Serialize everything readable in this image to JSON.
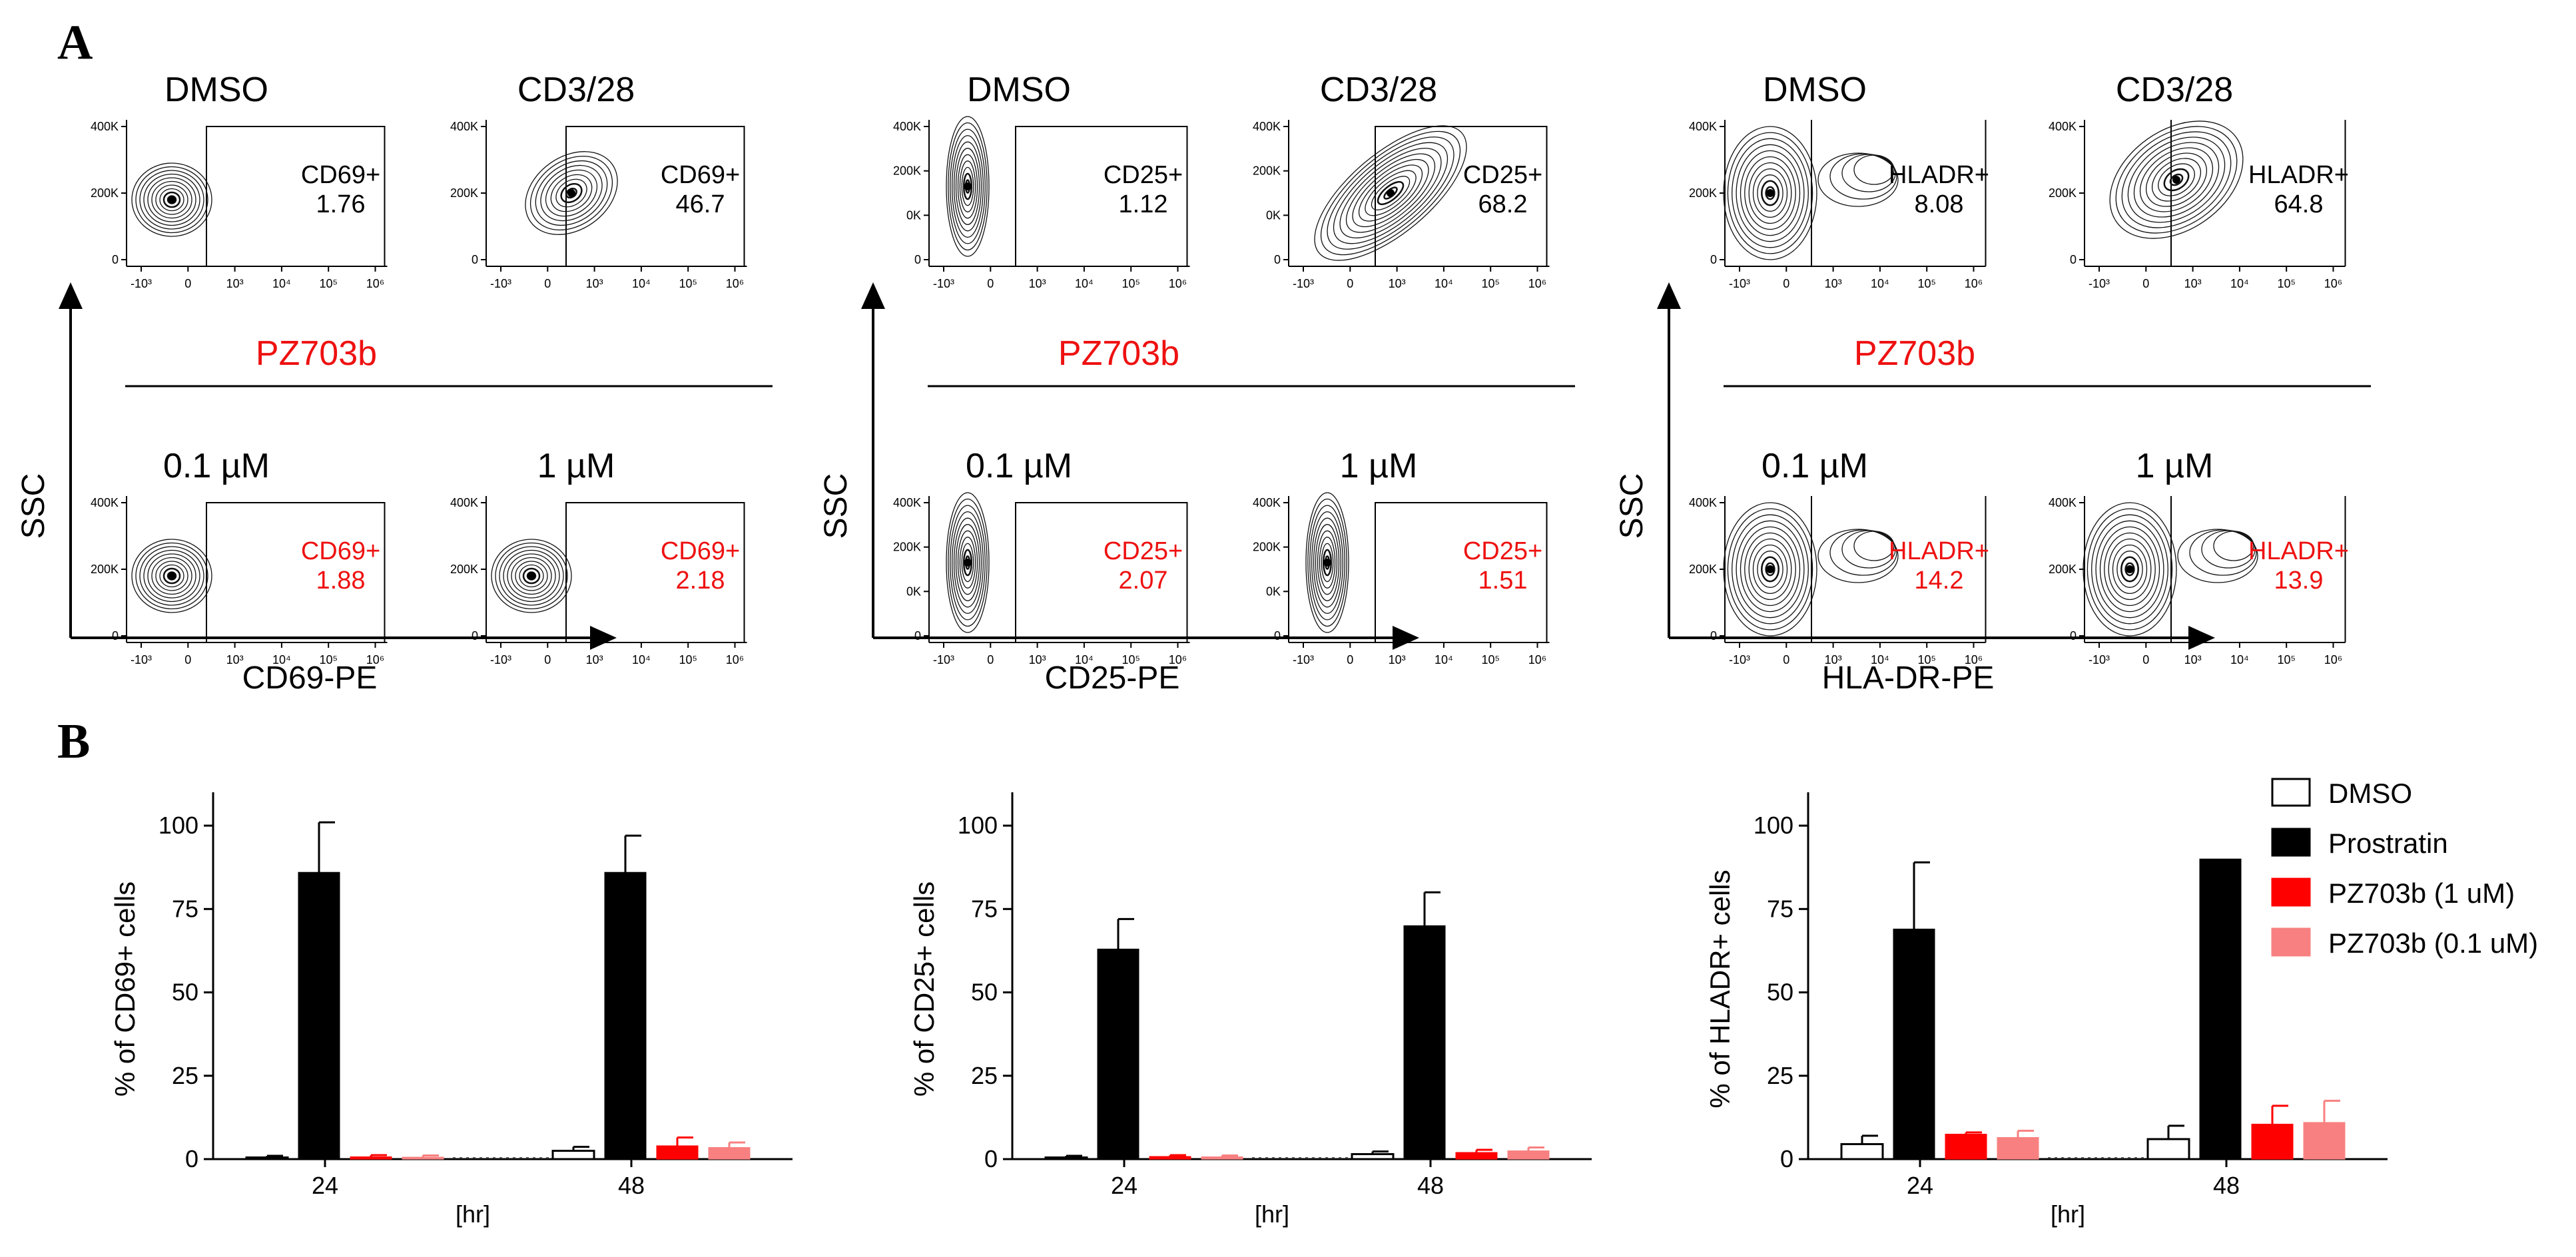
{
  "panel_letters": {
    "a": "A",
    "b": "B"
  },
  "section_a": {
    "groups": [
      {
        "xlabel": "CD69-PE",
        "ylabel": "SSC",
        "top_titles": [
          "DMSO",
          "CD3/28"
        ],
        "bottom_titles": [
          "0.1 µM",
          "1 µM"
        ],
        "bracket_label": "PZ703b",
        "y_ticks": [
          "400K",
          "200K",
          "0"
        ],
        "x_ticks": [
          "-10³",
          "0",
          "10³",
          "10⁴",
          "10⁵",
          "10⁶"
        ],
        "gates": [
          {
            "name": "CD69+",
            "value": "1.76",
            "color": "#000000"
          },
          {
            "name": "CD69+",
            "value": "46.7",
            "color": "#000000"
          },
          {
            "name": "CD69+",
            "value": "1.88",
            "color": "#ee1111"
          },
          {
            "name": "CD69+",
            "value": "2.18",
            "color": "#ee1111"
          }
        ]
      },
      {
        "xlabel": "CD25-PE",
        "ylabel": "SSC",
        "top_titles": [
          "DMSO",
          "CD3/28"
        ],
        "bottom_titles": [
          "0.1 µM",
          "1 µM"
        ],
        "bracket_label": "PZ703b",
        "y_ticks": [
          "400K",
          "200K",
          "0K",
          "0"
        ],
        "x_ticks": [
          "-10³",
          "0",
          "10³",
          "10⁴",
          "10⁵",
          "10⁶"
        ],
        "gates": [
          {
            "name": "CD25+",
            "value": "1.12",
            "color": "#000000"
          },
          {
            "name": "CD25+",
            "value": "68.2",
            "color": "#000000"
          },
          {
            "name": "CD25+",
            "value": "2.07",
            "color": "#ee1111"
          },
          {
            "name": "CD25+",
            "value": "1.51",
            "color": "#ee1111"
          }
        ]
      },
      {
        "xlabel": "HLA-DR-PE",
        "ylabel": "SSC",
        "top_titles": [
          "DMSO",
          "CD3/28"
        ],
        "bottom_titles": [
          "0.1 µM",
          "1 µM"
        ],
        "bracket_label": "PZ703b",
        "y_ticks": [
          "400K",
          "200K",
          "0"
        ],
        "x_ticks": [
          "-10³",
          "0",
          "10³",
          "10⁴",
          "10⁵",
          "10⁶"
        ],
        "gates": [
          {
            "name": "HLADR+",
            "value": "8.08",
            "color": "#000000"
          },
          {
            "name": "HLADR+",
            "value": "64.8",
            "color": "#000000"
          },
          {
            "name": "HLADR+",
            "value": "14.2",
            "color": "#ee1111"
          },
          {
            "name": "HLADR+",
            "value": "13.9",
            "color": "#ee1111"
          }
        ]
      }
    ]
  },
  "chart_data": [
    {
      "type": "bar",
      "title": "",
      "xlabel": "[hr]",
      "ylabel": "% of CD69+ cells",
      "ylim": [
        0,
        110
      ],
      "yticks": [
        0,
        25,
        50,
        75,
        100
      ],
      "categories": [
        "24",
        "48"
      ],
      "series": [
        {
          "name": "DMSO",
          "color": "#ffffff",
          "values": [
            0.5,
            2.5
          ],
          "errors": [
            0.5,
            1.2
          ]
        },
        {
          "name": "Prostratin",
          "color": "#000000",
          "values": [
            86,
            86
          ],
          "errors": [
            15,
            11
          ]
        },
        {
          "name": "PZ703b (1 uM)",
          "color": "#ff0000",
          "values": [
            0.7,
            4
          ],
          "errors": [
            0.5,
            2.5
          ]
        },
        {
          "name": "PZ703b (0.1 uM)",
          "color": "#f88080",
          "values": [
            0.6,
            3.5
          ],
          "errors": [
            0.5,
            1.5
          ]
        }
      ]
    },
    {
      "type": "bar",
      "title": "",
      "xlabel": "[hr]",
      "ylabel": "% of CD25+ cells",
      "ylim": [
        0,
        110
      ],
      "yticks": [
        0,
        25,
        50,
        75,
        100
      ],
      "categories": [
        "24",
        "48"
      ],
      "series": [
        {
          "name": "DMSO",
          "color": "#ffffff",
          "values": [
            0.5,
            1.5
          ],
          "errors": [
            0.5,
            0.8
          ]
        },
        {
          "name": "Prostratin",
          "color": "#000000",
          "values": [
            63,
            70
          ],
          "errors": [
            9,
            10
          ]
        },
        {
          "name": "PZ703b (1 uM)",
          "color": "#ff0000",
          "values": [
            0.8,
            2
          ],
          "errors": [
            0.4,
            0.8
          ]
        },
        {
          "name": "PZ703b (0.1 uM)",
          "color": "#f88080",
          "values": [
            0.7,
            2.5
          ],
          "errors": [
            0.4,
            1
          ]
        }
      ]
    },
    {
      "type": "bar",
      "title": "",
      "xlabel": "[hr]",
      "ylabel": "% of HLADR+ cells",
      "ylim": [
        0,
        110
      ],
      "yticks": [
        0,
        25,
        50,
        75,
        100
      ],
      "categories": [
        "24",
        "48"
      ],
      "series": [
        {
          "name": "DMSO",
          "color": "#ffffff",
          "values": [
            4.5,
            6
          ],
          "errors": [
            2.5,
            4
          ]
        },
        {
          "name": "Prostratin",
          "color": "#000000",
          "values": [
            69,
            90
          ],
          "errors": [
            20,
            0
          ]
        },
        {
          "name": "PZ703b (1 uM)",
          "color": "#ff0000",
          "values": [
            7.5,
            10.5
          ],
          "errors": [
            0.5,
            5.5
          ]
        },
        {
          "name": "PZ703b (0.1 uM)",
          "color": "#f88080",
          "values": [
            6.5,
            11
          ],
          "errors": [
            2,
            6.5
          ]
        }
      ]
    }
  ],
  "legend": {
    "items": [
      {
        "name": "DMSO",
        "color": "#ffffff"
      },
      {
        "name": "Prostratin",
        "color": "#000000"
      },
      {
        "name": "PZ703b (1 uM)",
        "color": "#ff0000"
      },
      {
        "name": "PZ703b (0.1 uM)",
        "color": "#f88080"
      }
    ]
  }
}
